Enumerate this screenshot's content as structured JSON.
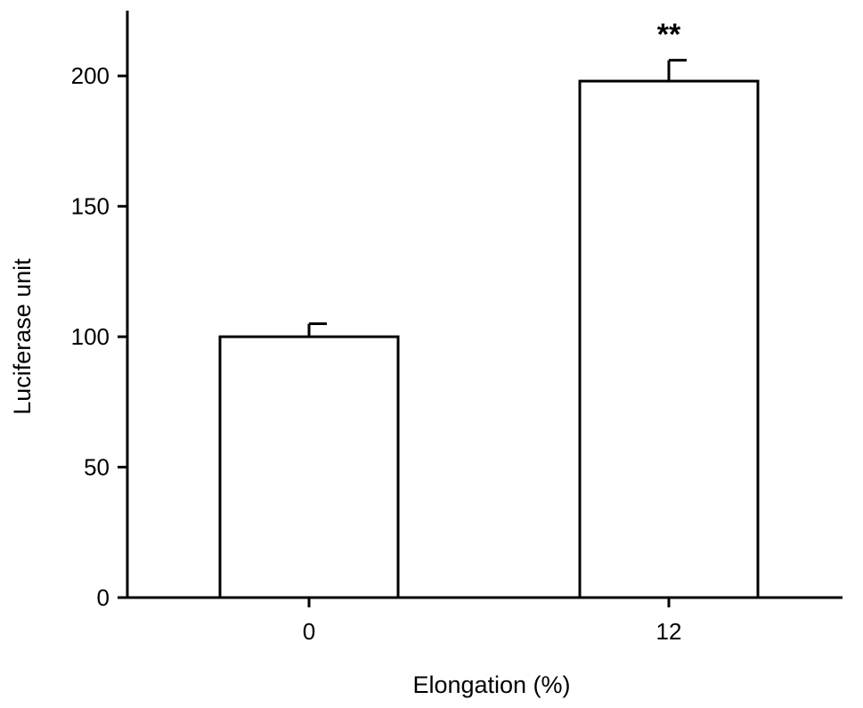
{
  "chart_data": {
    "type": "bar",
    "title": "",
    "xlabel": "Elongation (%)",
    "ylabel": "Luciferase unit",
    "categories": [
      "0",
      "12"
    ],
    "values": [
      100,
      198
    ],
    "errors": [
      5,
      8
    ],
    "annotations": [
      {
        "category": "12",
        "text": "**"
      }
    ],
    "ylim": [
      0,
      225
    ],
    "yticks": [
      0,
      50,
      100,
      150,
      200
    ],
    "ytick_labels": [
      "0",
      "50",
      "100",
      "150",
      "200"
    ],
    "grid": false,
    "legend": "none",
    "colors": {
      "bar_fill": "#ffffff",
      "bar_edge": "#000000"
    }
  }
}
